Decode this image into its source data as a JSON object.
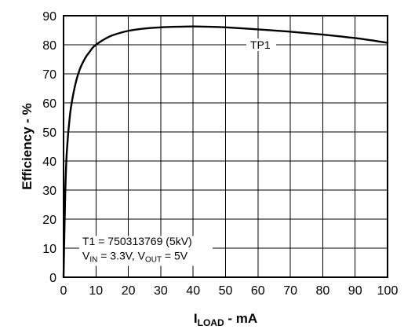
{
  "chart_data": {
    "type": "line",
    "title": "",
    "xlabel": {
      "main": "I",
      "sub": "LOAD",
      "suffix": " - mA"
    },
    "ylabel": "Efficiency - %",
    "xlim": [
      0,
      100
    ],
    "ylim": [
      0,
      90
    ],
    "xticks": [
      0,
      10,
      20,
      30,
      40,
      50,
      60,
      70,
      80,
      90,
      100
    ],
    "yticks": [
      0,
      10,
      20,
      30,
      40,
      50,
      60,
      70,
      80,
      90
    ],
    "grid": true,
    "series": [
      {
        "name": "TP1",
        "x": [
          0,
          0.5,
          1,
          2,
          3,
          4,
          5,
          6,
          7,
          8,
          9,
          10,
          12,
          15,
          20,
          25,
          30,
          35,
          40,
          45,
          50,
          60,
          70,
          80,
          90,
          100
        ],
        "y": [
          0,
          28,
          43,
          56,
          63,
          68,
          71.5,
          74,
          76,
          77.5,
          79,
          80,
          81.5,
          83.2,
          84.8,
          85.6,
          86,
          86.2,
          86.3,
          86.2,
          86,
          85.3,
          84.5,
          83.5,
          82.3,
          80.7
        ]
      }
    ],
    "annotations": {
      "transformer": "T1 = 750313769 (5kV)",
      "vin_main": "V",
      "vin_sub": "IN",
      "vin_value": " = 3.3V, ",
      "vout_main": "V",
      "vout_sub": "OUT",
      "vout_value": " = 5V"
    }
  }
}
